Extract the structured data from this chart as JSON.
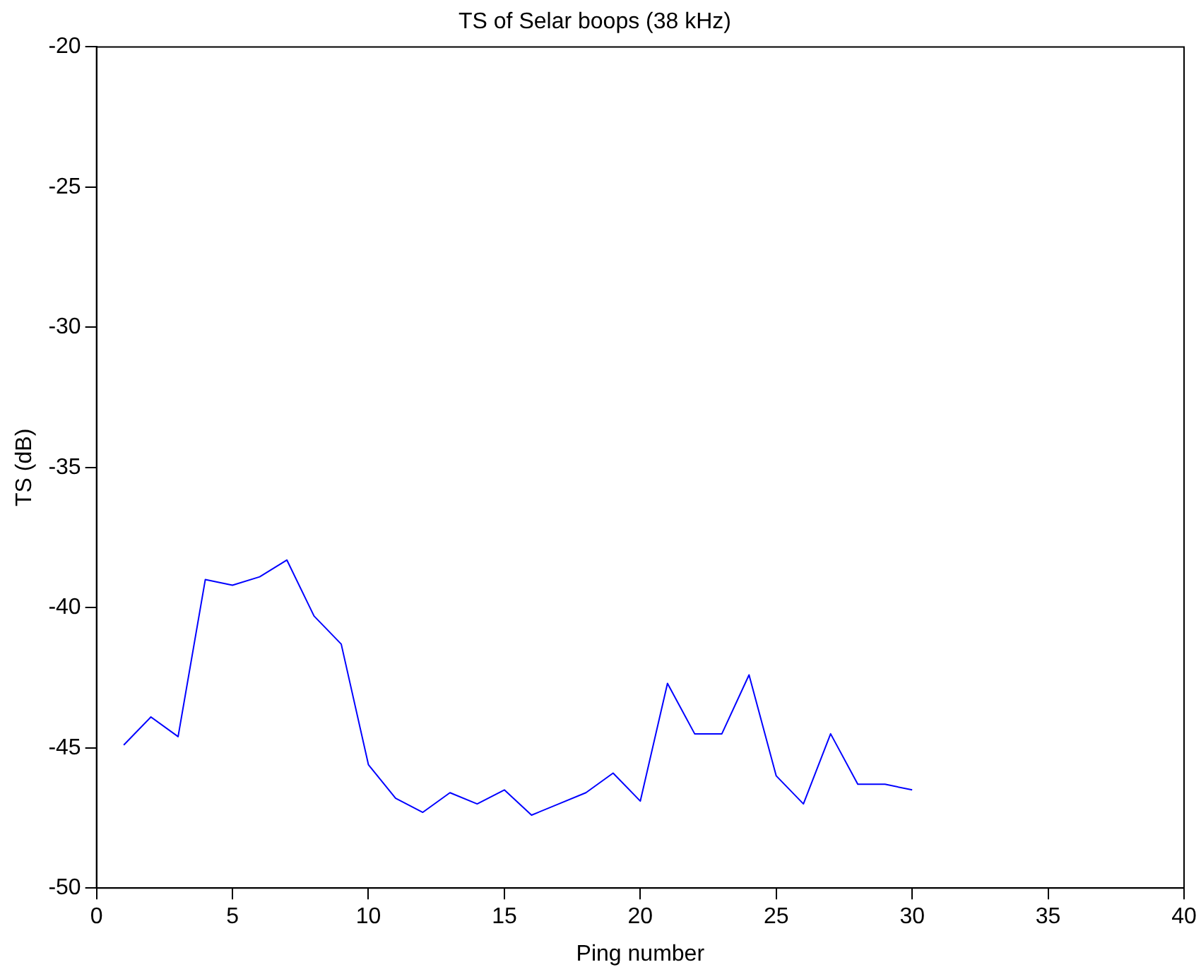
{
  "chart_data": {
    "type": "line",
    "title": "TS of Selar boops (38 kHz)",
    "xlabel": "Ping number",
    "ylabel": "TS (dB)",
    "x": [
      1,
      2,
      3,
      4,
      5,
      6,
      7,
      8,
      9,
      10,
      11,
      12,
      13,
      14,
      15,
      16,
      17,
      18,
      19,
      20,
      21,
      22,
      23,
      24,
      25,
      26,
      27,
      28,
      29,
      30
    ],
    "series": [
      {
        "color": "#0000ff",
        "values": [
          -44.9,
          -43.9,
          -44.6,
          -39.0,
          -39.2,
          -38.9,
          -38.3,
          -40.3,
          -41.3,
          -45.6,
          -46.8,
          -47.3,
          -46.6,
          -47.0,
          -46.5,
          -47.4,
          -47.0,
          -46.6,
          -45.9,
          -46.9,
          -42.7,
          -44.5,
          -44.5,
          -42.4,
          -46.0,
          -47.0,
          -44.5,
          -46.3,
          -46.3,
          -46.5
        ]
      }
    ],
    "xlim": [
      0,
      40
    ],
    "xticks": [
      0,
      5,
      10,
      15,
      20,
      25,
      30,
      35,
      40
    ],
    "ylim": [
      -50,
      -20
    ],
    "yticks": [
      -50,
      -45,
      -40,
      -35,
      -30,
      -25,
      -20
    ],
    "grid": false,
    "legend": false,
    "marker": "none",
    "line_style": "solid"
  }
}
